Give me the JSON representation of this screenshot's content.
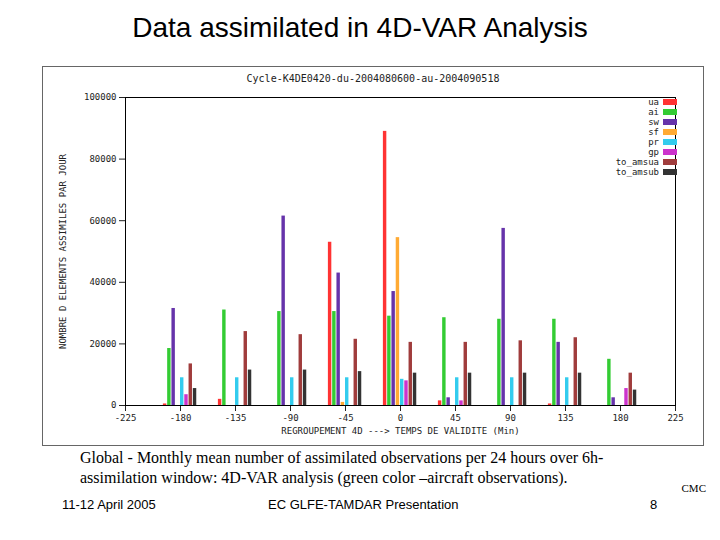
{
  "slide": {
    "title": "Data assimilated in 4D-VAR Analysis",
    "caption": "Global - Monthly mean number of assimilated observations per 24 hours over 6h-assimilation window: 4D-VAR analysis (green color –aircraft observations).",
    "corner_note": "CMC",
    "footer": [
      "11-12 April 2005",
      "EC GLFE-TAMDAR Presentation",
      "8"
    ]
  },
  "chart_data": {
    "type": "bar",
    "title": "Cycle-K4DE0420-du-2004080600-au-2004090518",
    "xlabel": "REGROUPEMENT 4D ---> TEMPS DE VALIDITE (Min)",
    "ylabel": "NOMBRE D ELEMENTS ASSIMILES PAR JOUR",
    "x": [
      -180,
      -135,
      -90,
      -45,
      0,
      45,
      90,
      135,
      180
    ],
    "series": [
      {
        "name": "ua",
        "color": "#ff3333",
        "values": [
          500,
          2000,
          0,
          53000,
          89000,
          1500,
          0,
          500,
          0
        ]
      },
      {
        "name": "ai",
        "color": "#33cc33",
        "values": [
          18500,
          31000,
          30500,
          30500,
          29000,
          28500,
          28000,
          28000,
          15000
        ]
      },
      {
        "name": "sw",
        "color": "#6633aa",
        "values": [
          31500,
          0,
          61500,
          43000,
          37000,
          2500,
          57500,
          20500,
          2500
        ]
      },
      {
        "name": "sf",
        "color": "#ffaa33",
        "values": [
          0,
          0,
          0,
          1000,
          54500,
          0,
          0,
          0,
          0
        ]
      },
      {
        "name": "pr",
        "color": "#33ccee",
        "values": [
          9000,
          9000,
          9000,
          9000,
          8500,
          9000,
          9000,
          9000,
          0
        ]
      },
      {
        "name": "gp",
        "color": "#cc33cc",
        "values": [
          3500,
          0,
          0,
          0,
          8000,
          1500,
          0,
          0,
          5500
        ]
      },
      {
        "name": "to_amsua",
        "color": "#a03c3c",
        "values": [
          13500,
          24000,
          23000,
          21500,
          20500,
          20500,
          21000,
          22000,
          10500
        ]
      },
      {
        "name": "to_amsub",
        "color": "#333333",
        "values": [
          5500,
          11500,
          11500,
          11000,
          10500,
          10500,
          10500,
          10500,
          5000
        ]
      }
    ],
    "xlim": [
      -225,
      225
    ],
    "xticks": [
      -225,
      -180,
      -135,
      -90,
      -45,
      0,
      45,
      90,
      135,
      180,
      225
    ],
    "ylim": [
      0,
      100000
    ],
    "yticks": [
      0,
      20000,
      40000,
      60000,
      80000,
      100000
    ],
    "legend": "upper right"
  }
}
